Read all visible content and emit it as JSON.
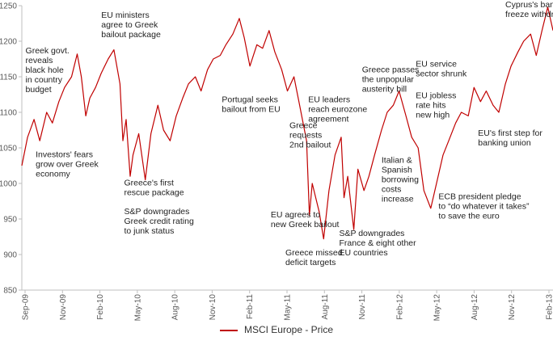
{
  "chart_data": {
    "type": "line",
    "ylim": [
      850,
      1250
    ],
    "y_ticks": [
      850,
      900,
      950,
      1000,
      1050,
      1100,
      1150,
      1200,
      1250
    ],
    "x_tick_labels": [
      "Sep-09",
      "Nov-09",
      "Feb-10",
      "May-10",
      "Aug-10",
      "Nov-10",
      "Feb-11",
      "May-11",
      "Aug-11",
      "Nov-11",
      "Feb-12",
      "May-12",
      "Aug-12",
      "Nov-12",
      "Feb-13"
    ],
    "series": [
      {
        "name": "MSCI Europe - Price",
        "color": "#c00000",
        "points": [
          [
            "2009-09-01",
            1025
          ],
          [
            "2009-09-15",
            1065
          ],
          [
            "2009-10-01",
            1090
          ],
          [
            "2009-10-15",
            1060
          ],
          [
            "2009-11-01",
            1100
          ],
          [
            "2009-11-15",
            1085
          ],
          [
            "2009-12-01",
            1115
          ],
          [
            "2009-12-15",
            1135
          ],
          [
            "2010-01-01",
            1150
          ],
          [
            "2010-01-15",
            1182
          ],
          [
            "2010-01-25",
            1150
          ],
          [
            "2010-02-05",
            1095
          ],
          [
            "2010-02-15",
            1120
          ],
          [
            "2010-03-01",
            1135
          ],
          [
            "2010-03-15",
            1155
          ],
          [
            "2010-04-01",
            1175
          ],
          [
            "2010-04-15",
            1188
          ],
          [
            "2010-04-30",
            1140
          ],
          [
            "2010-05-07",
            1060
          ],
          [
            "2010-05-15",
            1090
          ],
          [
            "2010-05-25",
            1010
          ],
          [
            "2010-06-01",
            1040
          ],
          [
            "2010-06-15",
            1070
          ],
          [
            "2010-07-01",
            1005
          ],
          [
            "2010-07-15",
            1070
          ],
          [
            "2010-08-01",
            1110
          ],
          [
            "2010-08-15",
            1075
          ],
          [
            "2010-08-31",
            1060
          ],
          [
            "2010-09-15",
            1095
          ],
          [
            "2010-10-01",
            1120
          ],
          [
            "2010-10-15",
            1140
          ],
          [
            "2010-11-01",
            1150
          ],
          [
            "2010-11-15",
            1130
          ],
          [
            "2010-12-01",
            1160
          ],
          [
            "2010-12-15",
            1175
          ],
          [
            "2011-01-01",
            1180
          ],
          [
            "2011-01-15",
            1195
          ],
          [
            "2011-02-01",
            1210
          ],
          [
            "2011-02-17",
            1232
          ],
          [
            "2011-03-01",
            1205
          ],
          [
            "2011-03-15",
            1165
          ],
          [
            "2011-04-01",
            1195
          ],
          [
            "2011-04-15",
            1190
          ],
          [
            "2011-05-01",
            1215
          ],
          [
            "2011-05-15",
            1185
          ],
          [
            "2011-06-01",
            1160
          ],
          [
            "2011-06-15",
            1130
          ],
          [
            "2011-07-01",
            1150
          ],
          [
            "2011-07-15",
            1110
          ],
          [
            "2011-08-01",
            1060
          ],
          [
            "2011-08-08",
            955
          ],
          [
            "2011-08-15",
            1000
          ],
          [
            "2011-09-01",
            960
          ],
          [
            "2011-09-12",
            922
          ],
          [
            "2011-09-25",
            990
          ],
          [
            "2011-10-10",
            1040
          ],
          [
            "2011-10-25",
            1065
          ],
          [
            "2011-11-01",
            980
          ],
          [
            "2011-11-10",
            1010
          ],
          [
            "2011-11-25",
            935
          ],
          [
            "2011-12-05",
            1020
          ],
          [
            "2011-12-20",
            990
          ],
          [
            "2012-01-01",
            1010
          ],
          [
            "2012-01-15",
            1040
          ],
          [
            "2012-02-01",
            1075
          ],
          [
            "2012-02-15",
            1100
          ],
          [
            "2012-03-01",
            1110
          ],
          [
            "2012-03-15",
            1130
          ],
          [
            "2012-04-01",
            1095
          ],
          [
            "2012-04-15",
            1065
          ],
          [
            "2012-05-01",
            1050
          ],
          [
            "2012-05-15",
            990
          ],
          [
            "2012-06-01",
            965
          ],
          [
            "2012-06-15",
            1000
          ],
          [
            "2012-07-01",
            1040
          ],
          [
            "2012-07-15",
            1060
          ],
          [
            "2012-08-01",
            1085
          ],
          [
            "2012-08-15",
            1100
          ],
          [
            "2012-09-01",
            1095
          ],
          [
            "2012-09-15",
            1135
          ],
          [
            "2012-10-01",
            1115
          ],
          [
            "2012-10-15",
            1130
          ],
          [
            "2012-11-01",
            1110
          ],
          [
            "2012-11-15",
            1100
          ],
          [
            "2012-12-01",
            1140
          ],
          [
            "2012-12-15",
            1165
          ],
          [
            "2013-01-01",
            1185
          ],
          [
            "2013-01-15",
            1200
          ],
          [
            "2013-02-01",
            1210
          ],
          [
            "2013-02-15",
            1180
          ],
          [
            "2013-03-01",
            1215
          ],
          [
            "2013-03-15",
            1248
          ],
          [
            "2013-03-28",
            1215
          ]
        ]
      }
    ],
    "annotations": [
      {
        "lines": [
          "Greek govt.",
          "reveals",
          "black hole",
          "in country",
          "budget"
        ],
        "date": "2009-09-10",
        "y": 1183
      },
      {
        "lines": [
          "Investors' fears",
          "grow over Greek",
          "economy"
        ],
        "date": "2009-10-05",
        "y": 1037
      },
      {
        "lines": [
          "EU ministers",
          "agree to Greek",
          "bailout package"
        ],
        "date": "2010-03-15",
        "y": 1233
      },
      {
        "lines": [
          "Greece's first",
          "rescue package"
        ],
        "date": "2010-05-10",
        "y": 997
      },
      {
        "lines": [
          "S&P downgrades",
          "Greek credit rating",
          "to junk status"
        ],
        "date": "2010-05-10",
        "y": 957
      },
      {
        "lines": [
          "Portugal seeks",
          "bailout from EU"
        ],
        "date": "2011-01-05",
        "y": 1114
      },
      {
        "lines": [
          "EU leaders",
          "reach eurozone",
          "agreement"
        ],
        "date": "2011-08-05",
        "y": 1114
      },
      {
        "lines": [
          "Greece",
          "requests",
          "2nd bailout"
        ],
        "date": "2011-06-20",
        "y": 1078
      },
      {
        "lines": [
          "EU agrees to",
          "new Greek bailout"
        ],
        "date": "2011-05-05",
        "y": 952
      },
      {
        "lines": [
          "Greece missed",
          "deficit targets"
        ],
        "date": "2011-06-10",
        "y": 899
      },
      {
        "lines": [
          "S&P downgrades",
          "France & eight other",
          "EU countries"
        ],
        "date": "2011-10-20",
        "y": 926
      },
      {
        "lines": [
          "Greece passes",
          "the unpopular",
          "austerity bill"
        ],
        "date": "2011-12-15",
        "y": 1156
      },
      {
        "lines": [
          "Italian &",
          "Spanish",
          "borrowing",
          "costs",
          "increase"
        ],
        "date": "2012-02-01",
        "y": 1029
      },
      {
        "lines": [
          "EU service",
          "sector shrunk"
        ],
        "date": "2012-04-25",
        "y": 1164
      },
      {
        "lines": [
          "EU jobless",
          "rate hits",
          "new high"
        ],
        "date": "2012-04-25",
        "y": 1120
      },
      {
        "lines": [
          "EU's first step for",
          "banking union"
        ],
        "date": "2012-09-25",
        "y": 1067
      },
      {
        "lines": [
          "ECB president pledge",
          "to “do whatever it takes”",
          "to save the euro"
        ],
        "date": "2012-06-20",
        "y": 978
      },
      {
        "lines": [
          "Cyprus's banks",
          "freeze withdrawals"
        ],
        "date": "2012-12-01",
        "y": 1248
      }
    ]
  }
}
